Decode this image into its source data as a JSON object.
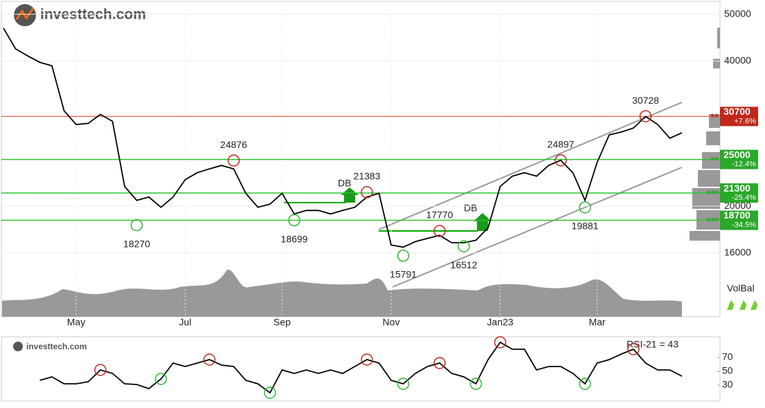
{
  "logo": "investtech.com",
  "chart_data": {
    "type": "line",
    "log_scale": true,
    "grid": true,
    "color": "#000000",
    "categories": [
      null,
      null,
      null,
      null,
      null,
      null,
      "May",
      null,
      null,
      null,
      null,
      null,
      null,
      null,
      null,
      "Jul",
      null,
      null,
      null,
      null,
      null,
      null,
      null,
      "Sep",
      null,
      null,
      null,
      null,
      null,
      null,
      null,
      null,
      "Nov",
      null,
      null,
      null,
      null,
      null,
      null,
      null,
      null,
      "Jan23",
      null,
      null,
      null,
      null,
      null,
      null,
      null,
      "Mar",
      null,
      null,
      null,
      null,
      null,
      null,
      null
    ],
    "values": [
      46800,
      42400,
      41000,
      39750,
      39100,
      31550,
      29550,
      29700,
      31000,
      30000,
      21980,
      20570,
      20900,
      19900,
      20900,
      22700,
      23470,
      23900,
      24300,
      23900,
      21270,
      19900,
      20200,
      21270,
      19270,
      19600,
      19600,
      19270,
      19600,
      19900,
      20900,
      21270,
      16610,
      16450,
      16890,
      17150,
      17400,
      16800,
      16800,
      17000,
      18040,
      21980,
      23080,
      23470,
      23080,
      24300,
      24900,
      23470,
      20570,
      24650,
      28120,
      28500,
      29050,
      30700,
      29550,
      27670,
      28400
    ],
    "ylim": [
      11800,
      53000
    ],
    "yticks": [
      16000,
      20000,
      40000,
      50000
    ],
    "levels": [
      {
        "value": 30700,
        "change": "+7.6%",
        "stars": "**",
        "color": "#e07060",
        "box_color": "#c0281c"
      },
      {
        "value": 25000,
        "change": "-12.4%",
        "stars": "**",
        "color": "#2cc42c",
        "box_color": "#2aa82a"
      },
      {
        "value": 21300,
        "change": "-25.4%",
        "stars": "***",
        "color": "#2cc42c",
        "box_color": "#2aa82a"
      },
      {
        "value": 18700,
        "change": "-34.5%",
        "stars": "***",
        "color": "#2cc42c",
        "box_color": "#2aa82a"
      }
    ],
    "annotations": [
      {
        "value": 24876,
        "index": 19,
        "kind": "top"
      },
      {
        "value": 18270,
        "index": 11,
        "kind": "bottom"
      },
      {
        "value": 18699,
        "index": 24,
        "kind": "bottom"
      },
      {
        "value": 21383,
        "index": 30,
        "kind": "top"
      },
      {
        "value": 15791,
        "index": 33,
        "kind": "bottom"
      },
      {
        "value": 17770,
        "index": 36,
        "kind": "top"
      },
      {
        "value": 16512,
        "index": 38,
        "kind": "bottom"
      },
      {
        "value": 24897,
        "index": 46,
        "kind": "top"
      },
      {
        "value": 19881,
        "index": 48,
        "kind": "bottom"
      },
      {
        "value": 30728,
        "index": 53,
        "kind": "top"
      }
    ],
    "db_labels": [
      "DB",
      "DB"
    ],
    "volume_label": "VolBal"
  },
  "rsi": {
    "title": "RSI-21 = 43",
    "ylim": [
      7,
      100
    ],
    "yticks": [
      30,
      50,
      70
    ],
    "values": [
      null,
      null,
      null,
      37,
      42,
      32,
      32,
      35,
      52,
      47,
      32,
      31,
      25,
      39,
      62,
      57,
      62,
      67,
      59,
      57,
      37,
      32,
      19,
      52,
      47,
      52,
      47,
      52,
      47,
      57,
      67,
      62,
      37,
      32,
      47,
      57,
      62,
      47,
      42,
      32,
      67,
      92,
      82,
      82,
      52,
      57,
      57,
      47,
      32,
      62,
      67,
      75,
      82,
      62,
      52,
      52,
      43
    ],
    "tops": [
      8,
      17,
      30,
      36,
      41,
      52
    ],
    "bottoms": [
      13,
      22,
      33,
      39,
      48
    ]
  }
}
